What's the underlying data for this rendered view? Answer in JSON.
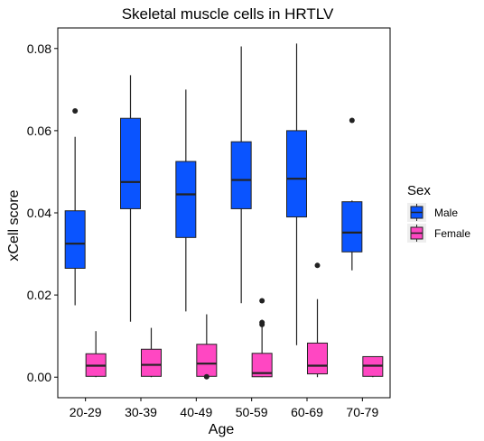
{
  "chart_data": {
    "type": "boxplot",
    "title": "Skeletal muscle cells in HRTLV",
    "xlabel": "Age",
    "ylabel": "xCell score",
    "ylim": [
      -0.005,
      0.085
    ],
    "yticks": [
      "0.00",
      "0.02",
      "0.04",
      "0.06",
      "0.08"
    ],
    "ytick_values": [
      0,
      0.02,
      0.04,
      0.06,
      0.08
    ],
    "categories": [
      "20-29",
      "30-39",
      "40-49",
      "50-59",
      "60-69",
      "70-79"
    ],
    "grid": false,
    "legend": {
      "title": "Sex",
      "position": "right",
      "entries": [
        "Male",
        "Female"
      ]
    },
    "series": [
      {
        "name": "Male",
        "color": "#0a54ff",
        "boxes": [
          {
            "category": "20-29",
            "min": 0.0175,
            "q1": 0.0265,
            "median": 0.0325,
            "q3": 0.0405,
            "max": 0.0585,
            "outliers": [
              0.0648
            ]
          },
          {
            "category": "30-39",
            "min": 0.0135,
            "q1": 0.041,
            "median": 0.0475,
            "q3": 0.063,
            "max": 0.0735,
            "outliers": []
          },
          {
            "category": "40-49",
            "min": 0.016,
            "q1": 0.034,
            "median": 0.0445,
            "q3": 0.0525,
            "max": 0.07,
            "outliers": []
          },
          {
            "category": "50-59",
            "min": 0.018,
            "q1": 0.041,
            "median": 0.048,
            "q3": 0.0573,
            "max": 0.0805,
            "outliers": []
          },
          {
            "category": "60-69",
            "min": 0.0078,
            "q1": 0.039,
            "median": 0.0483,
            "q3": 0.06,
            "max": 0.0812,
            "outliers": []
          },
          {
            "category": "70-79",
            "min": 0.026,
            "q1": 0.0305,
            "median": 0.0352,
            "q3": 0.0427,
            "max": 0.043,
            "outliers": [
              0.0625
            ]
          }
        ]
      },
      {
        "name": "Female",
        "color": "#ff47c2",
        "boxes": [
          {
            "category": "20-29",
            "min": 0.0,
            "q1": 0.0002,
            "median": 0.0028,
            "q3": 0.0057,
            "max": 0.0112,
            "outliers": []
          },
          {
            "category": "30-39",
            "min": 0.0,
            "q1": 0.0002,
            "median": 0.003,
            "q3": 0.0068,
            "max": 0.012,
            "outliers": []
          },
          {
            "category": "40-49",
            "min": 0.0,
            "q1": 0.0002,
            "median": 0.0033,
            "q3": 0.008,
            "max": 0.0153,
            "outliers": [
              0.0001
            ]
          },
          {
            "category": "50-59",
            "min": 0.0,
            "q1": 0.0001,
            "median": 0.001,
            "q3": 0.0058,
            "max": 0.014,
            "outliers": [
              0.0186,
              0.0133,
              0.0128
            ]
          },
          {
            "category": "60-69",
            "min": 0.0,
            "q1": 0.0008,
            "median": 0.0028,
            "q3": 0.0083,
            "max": 0.019,
            "outliers": [
              0.0272
            ]
          },
          {
            "category": "70-79",
            "min": 0.0,
            "q1": 0.0002,
            "median": 0.0028,
            "q3": 0.005,
            "max": 0.005,
            "outliers": []
          }
        ]
      }
    ]
  }
}
